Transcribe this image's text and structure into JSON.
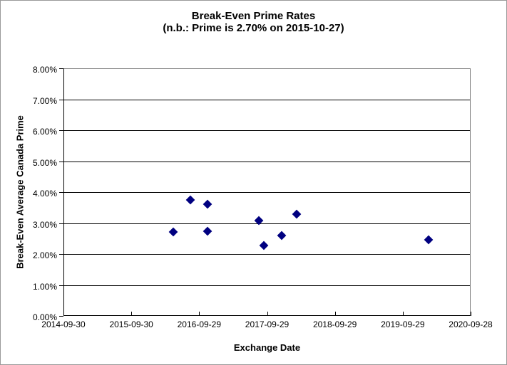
{
  "chart": {
    "title_line1": "Break-Even Prime Rates",
    "title_line2": "(n.b.: Prime is 2.70% on 2015-10-27)",
    "xlabel": "Exchange Date",
    "ylabel": "Break-Even Average Canada Prime"
  },
  "chart_data": {
    "type": "scatter",
    "title": "Break-Even Prime Rates (n.b.: Prime is 2.70% on 2015-10-27)",
    "xlabel": "Exchange Date",
    "ylabel": "Break-Even Average Canada Prime",
    "x_ticks": [
      "2014-09-30",
      "2015-09-30",
      "2016-09-29",
      "2017-09-29",
      "2018-09-29",
      "2019-09-29",
      "2020-09-28"
    ],
    "y_ticks": [
      "0.00%",
      "1.00%",
      "2.00%",
      "3.00%",
      "4.00%",
      "5.00%",
      "6.00%",
      "7.00%",
      "8.00%"
    ],
    "xlim": [
      "2014-09-30",
      "2020-09-28"
    ],
    "ylim": [
      0,
      8
    ],
    "grid": "horizontal",
    "legend": "none",
    "marker": {
      "shape": "diamond",
      "color": "#000080"
    },
    "points": [
      {
        "date": "2016-05-09",
        "value": 2.74
      },
      {
        "date": "2016-08-09",
        "value": 3.78
      },
      {
        "date": "2016-11-08",
        "value": 3.63
      },
      {
        "date": "2016-11-09",
        "value": 2.76
      },
      {
        "date": "2017-08-13",
        "value": 3.1
      },
      {
        "date": "2017-09-09",
        "value": 2.3
      },
      {
        "date": "2017-12-14",
        "value": 2.63
      },
      {
        "date": "2018-03-04",
        "value": 3.32
      },
      {
        "date": "2020-02-12",
        "value": 2.48
      }
    ]
  }
}
